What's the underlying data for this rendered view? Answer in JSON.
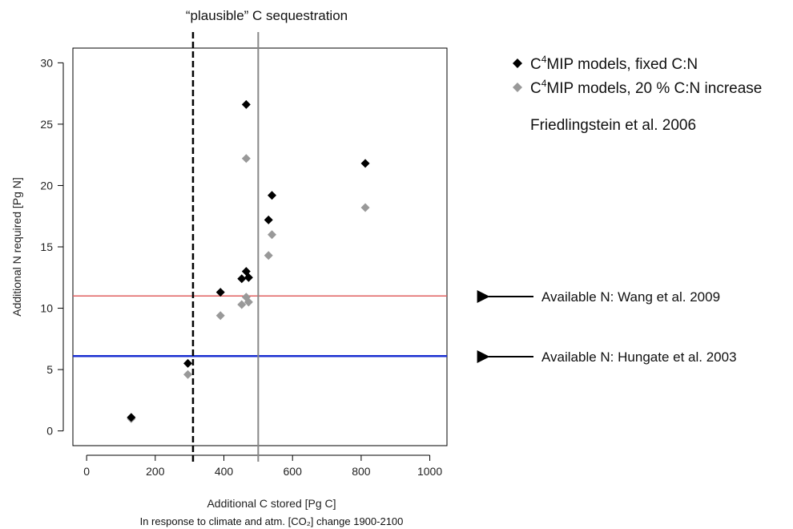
{
  "chart_data": {
    "type": "scatter",
    "top_label": "“plausible” C sequestration",
    "xlabel": "Additional C stored [Pg C]",
    "xlabel_sub": "In response to climate and atm. [CO₂] change 1900-2100",
    "ylabel": "Additional N required [Pg N]",
    "xlim": [
      -40,
      1050
    ],
    "ylim": [
      -1.2,
      31.2
    ],
    "xticks": [
      0,
      200,
      400,
      600,
      800,
      1000
    ],
    "yticks": [
      0,
      5,
      10,
      15,
      20,
      25,
      30
    ],
    "legend": {
      "items": [
        {
          "prefix": "C",
          "sup": "4",
          "suffix": "MIP models, fixed C:N",
          "color": "#000000"
        },
        {
          "prefix": "C",
          "sup": "4",
          "suffix": "MIP models, 20 % C:N increase",
          "color": "#999999"
        }
      ],
      "reference": "Friedlingstein et al. 2006"
    },
    "series": [
      {
        "color": "#000000",
        "x": [
          130,
          295,
          390,
          452,
          465,
          465,
          472,
          530,
          540,
          812
        ],
        "y": [
          1.1,
          5.5,
          11.3,
          12.4,
          13.0,
          26.6,
          12.5,
          17.2,
          19.2,
          21.8
        ]
      },
      {
        "color": "#999999",
        "x": [
          130,
          295,
          390,
          452,
          465,
          465,
          472,
          530,
          540,
          812
        ],
        "y": [
          1.0,
          4.6,
          9.4,
          10.3,
          10.9,
          22.2,
          10.5,
          14.3,
          16.0,
          18.2
        ]
      }
    ],
    "vlines": [
      {
        "x": 310,
        "style": "dashed",
        "color": "#000000"
      },
      {
        "x": 500,
        "style": "solid",
        "color": "#888888"
      }
    ],
    "hlines": [
      {
        "y": 11,
        "color": "#e06060",
        "label": "Available N:  Wang et al. 2009"
      },
      {
        "y": 6.1,
        "color": "#1a2fd0",
        "label": "Available N:  Hungate et al. 2003"
      }
    ]
  }
}
